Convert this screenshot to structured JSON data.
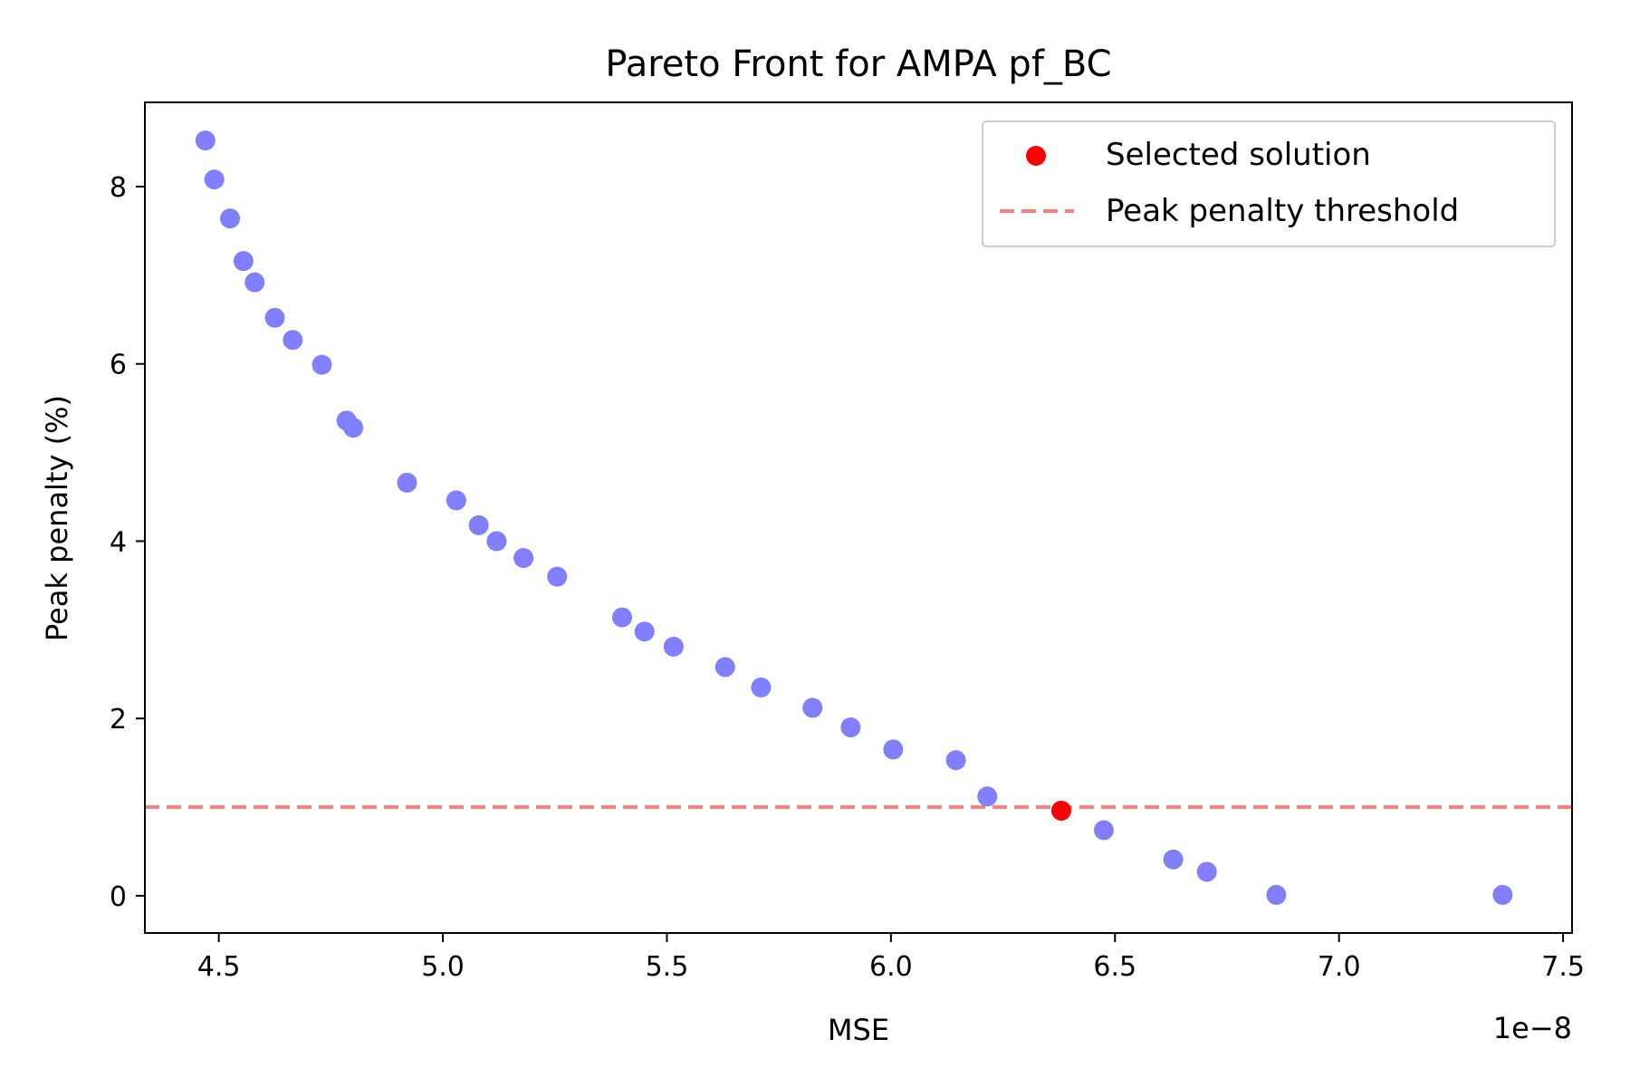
{
  "chart_data": {
    "type": "scatter",
    "title": "Pareto Front for AMPA pf_BC",
    "xlabel": "MSE",
    "ylabel": "Peak penalty (%)",
    "x_offset_label": "1e−8",
    "xlim": [
      4.335,
      7.52
    ],
    "ylim": [
      -0.42,
      8.95
    ],
    "xticks": [
      4.5,
      5.0,
      5.5,
      6.0,
      6.5,
      7.0,
      7.5
    ],
    "xtick_labels": [
      "4.5",
      "5.0",
      "5.5",
      "6.0",
      "6.5",
      "7.0",
      "7.5"
    ],
    "yticks": [
      0,
      2,
      4,
      6,
      8
    ],
    "ytick_labels": [
      "0",
      "2",
      "4",
      "6",
      "8"
    ],
    "grid": false,
    "legend_position": "top-right",
    "series": [
      {
        "type": "scatter",
        "color": "#8080ff",
        "points": [
          [
            4.47,
            8.52
          ],
          [
            4.49,
            8.08
          ],
          [
            4.525,
            7.64
          ],
          [
            4.555,
            7.16
          ],
          [
            4.58,
            6.92
          ],
          [
            4.625,
            6.52
          ],
          [
            4.665,
            6.27
          ],
          [
            4.73,
            5.99
          ],
          [
            4.785,
            5.36
          ],
          [
            4.8,
            5.28
          ],
          [
            4.92,
            4.66
          ],
          [
            5.03,
            4.46
          ],
          [
            5.08,
            4.18
          ],
          [
            5.12,
            4.0
          ],
          [
            5.18,
            3.81
          ],
          [
            5.255,
            3.6
          ],
          [
            5.4,
            3.14
          ],
          [
            5.45,
            2.98
          ],
          [
            5.515,
            2.81
          ],
          [
            5.63,
            2.58
          ],
          [
            5.71,
            2.35
          ],
          [
            5.825,
            2.12
          ],
          [
            5.91,
            1.9
          ],
          [
            6.005,
            1.65
          ],
          [
            6.145,
            1.53
          ],
          [
            6.215,
            1.12
          ],
          [
            6.475,
            0.74
          ],
          [
            6.63,
            0.41
          ],
          [
            6.705,
            0.27
          ],
          [
            6.86,
            0.01
          ],
          [
            7.365,
            0.01
          ]
        ]
      },
      {
        "type": "scatter",
        "name": "Selected solution",
        "color": "#ff0000",
        "points": [
          [
            6.38,
            0.96
          ]
        ]
      },
      {
        "type": "hline",
        "name": "Peak penalty threshold",
        "color": "#ff8080",
        "y": 1.0
      }
    ]
  }
}
